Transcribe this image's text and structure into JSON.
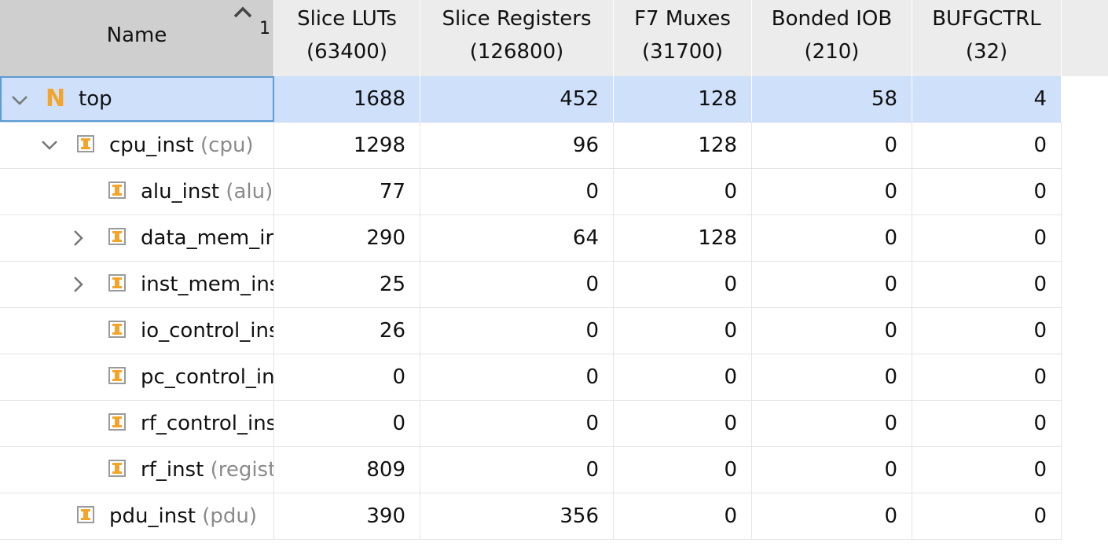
{
  "columns": [
    {
      "label_line1": "Name",
      "label_line2": ""
    },
    {
      "label_line1": "Slice LUTs",
      "label_line2": "(63400)"
    },
    {
      "label_line1": "Slice Registers",
      "label_line2": "(126800)"
    },
    {
      "label_line1": "F7 Muxes",
      "label_line2": "(31700)"
    },
    {
      "label_line1": "Bonded IOB",
      "label_line2": "(210)"
    },
    {
      "label_line1": "BUFGCTRL",
      "label_line2": "(32)"
    }
  ],
  "sort_order": "1",
  "rows": [
    {
      "name": "top",
      "type": "",
      "depth": 0,
      "expand": "expanded",
      "icon": "netlist-n-icon",
      "selected": true,
      "values": [
        "1688",
        "452",
        "128",
        "58",
        "4"
      ]
    },
    {
      "name": "cpu_inst",
      "type": "(cpu)",
      "depth": 1,
      "expand": "expanded",
      "icon": "instance-icon",
      "selected": false,
      "values": [
        "1298",
        "96",
        "128",
        "0",
        "0"
      ]
    },
    {
      "name": "alu_inst",
      "type": "(alu)",
      "depth": 2,
      "expand": "none",
      "icon": "instance-icon",
      "selected": false,
      "values": [
        "77",
        "0",
        "0",
        "0",
        "0"
      ]
    },
    {
      "name": "data_mem_ir",
      "type": "",
      "depth": 2,
      "expand": "collapsed",
      "icon": "instance-icon",
      "selected": false,
      "values": [
        "290",
        "64",
        "128",
        "0",
        "0"
      ]
    },
    {
      "name": "inst_mem_ins",
      "type": "",
      "depth": 2,
      "expand": "collapsed",
      "icon": "instance-icon",
      "selected": false,
      "values": [
        "25",
        "0",
        "0",
        "0",
        "0"
      ]
    },
    {
      "name": "io_control_ins",
      "type": "",
      "depth": 2,
      "expand": "none",
      "icon": "instance-icon",
      "selected": false,
      "values": [
        "26",
        "0",
        "0",
        "0",
        "0"
      ]
    },
    {
      "name": "pc_control_in",
      "type": "",
      "depth": 2,
      "expand": "none",
      "icon": "instance-icon",
      "selected": false,
      "values": [
        "0",
        "0",
        "0",
        "0",
        "0"
      ]
    },
    {
      "name": "rf_control_ins",
      "type": "",
      "depth": 2,
      "expand": "none",
      "icon": "instance-icon",
      "selected": false,
      "values": [
        "0",
        "0",
        "0",
        "0",
        "0"
      ]
    },
    {
      "name": "rf_inst",
      "type": "(regist",
      "depth": 2,
      "expand": "none",
      "icon": "instance-icon",
      "selected": false,
      "values": [
        "809",
        "0",
        "0",
        "0",
        "0"
      ]
    },
    {
      "name": "pdu_inst",
      "type": "(pdu)",
      "depth": 1,
      "expand": "none",
      "icon": "instance-icon",
      "selected": false,
      "values": [
        "390",
        "356",
        "0",
        "0",
        "0"
      ]
    }
  ],
  "colors": {
    "header_bg": "#ececec",
    "sorted_header_bg": "#cfcfcf",
    "selected_row": "#cfe0fb",
    "focus_border": "#5c9bd4",
    "icon_accent": "#f4a429",
    "type_text": "#8a8a8a"
  }
}
